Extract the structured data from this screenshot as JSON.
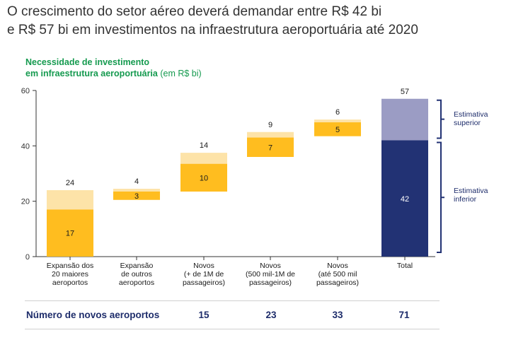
{
  "header": {
    "title_line1": "O crescimento do setor aéreo deverá demandar entre R$ 42 bi",
    "title_line2": "e R$ 57 bi em investimentos na infraestrutura aeroportuária até 2020"
  },
  "chart_data": {
    "type": "bar",
    "subtitle_line1": "Necessidade de investimento",
    "subtitle_line2": "em infraestrutura aeroportuária",
    "subtitle_unit": "(em R$ bi)",
    "ylim": [
      0,
      60
    ],
    "yticks": [
      0,
      20,
      40,
      60
    ],
    "grid": false,
    "categories": [
      [
        "Expansão dos",
        "20 maiores",
        "aeroportos"
      ],
      [
        "Expansão",
        "de outros",
        "aeroportos"
      ],
      [
        "Novos",
        "(+ de 1M de",
        "passageiros)"
      ],
      [
        "Novos",
        "(500 mil-1M de",
        "passageiros)"
      ],
      [
        "Novos",
        "(até 500 mil",
        "passageiros)"
      ],
      [
        "Total"
      ]
    ],
    "series": [
      {
        "name": "Estimativa inferior",
        "values": [
          17,
          3,
          10,
          7,
          5,
          42
        ]
      },
      {
        "name": "Estimativa superior",
        "values": [
          24,
          4,
          14,
          9,
          6,
          57
        ]
      }
    ],
    "bases": [
      0,
      20.5,
      23.5,
      36,
      43.5,
      0
    ],
    "colors": {
      "lower": "#ffbd1f",
      "upper": "#fde3a8",
      "total_lower": "#223274",
      "total_upper": "#9b9cc4",
      "axis": "#333333",
      "bracket": "#223274",
      "label": "#1e2d6b"
    },
    "legend_placement": "right",
    "legend": [
      {
        "key": "upper",
        "lines": [
          "Estimativa",
          "superior"
        ]
      },
      {
        "key": "lower",
        "lines": [
          "Estimativa",
          "inferior"
        ]
      }
    ]
  },
  "airports": {
    "label": "Número de novos aeroportos",
    "values": [
      "15",
      "23",
      "33",
      "71"
    ]
  }
}
